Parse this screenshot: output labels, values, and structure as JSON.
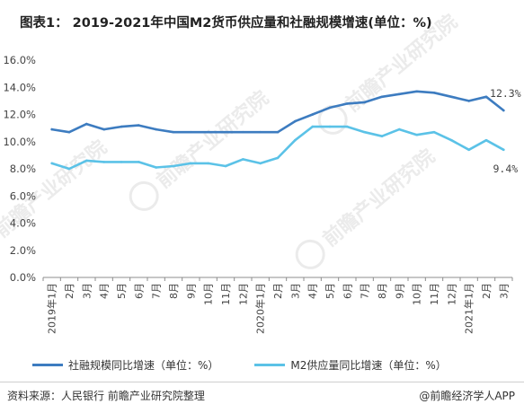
{
  "title": "图表1： 2019-2021年中国M2货币供应量和社融规模增速(单位：%)",
  "source": "资料来源：人民银行 前瞻产业研究院整理",
  "credit": "@前瞻经济学人APP",
  "watermark_text": "前瞻产业研究院",
  "chart_data": {
    "type": "line",
    "categories": [
      "2019年1月",
      "2月",
      "3月",
      "4月",
      "5月",
      "6月",
      "7月",
      "8月",
      "9月",
      "10月",
      "11月",
      "12月",
      "2020年1月",
      "2月",
      "3月",
      "4月",
      "5月",
      "6月",
      "7月",
      "8月",
      "9月",
      "10月",
      "11月",
      "12月",
      "2021年1月",
      "2月",
      "3月"
    ],
    "y_ticks": [
      "0.0%",
      "2.0%",
      "4.0%",
      "6.0%",
      "8.0%",
      "10.0%",
      "12.0%",
      "14.0%",
      "16.0%"
    ],
    "ylim": [
      0,
      16
    ],
    "grid": false,
    "legend_position": "bottom",
    "series": [
      {
        "name": "社融规模同比增速（单位：%）",
        "color": "#3d7cc0",
        "values": [
          10.9,
          10.7,
          11.3,
          10.9,
          11.1,
          11.2,
          10.9,
          10.7,
          10.7,
          10.7,
          10.7,
          10.7,
          10.7,
          10.7,
          11.5,
          12.0,
          12.5,
          12.8,
          12.9,
          13.3,
          13.5,
          13.7,
          13.6,
          13.3,
          13.0,
          13.3,
          12.3
        ],
        "end_label": "12.3%"
      },
      {
        "name": "M2供应量同比增速（单位：%）",
        "color": "#5bc2e7",
        "values": [
          8.4,
          8.0,
          8.6,
          8.5,
          8.5,
          8.5,
          8.1,
          8.2,
          8.4,
          8.4,
          8.2,
          8.7,
          8.4,
          8.8,
          10.1,
          11.1,
          11.1,
          11.1,
          10.7,
          10.4,
          10.9,
          10.5,
          10.7,
          10.1,
          9.4,
          10.1,
          9.4
        ],
        "end_label": "9.4%"
      }
    ]
  }
}
